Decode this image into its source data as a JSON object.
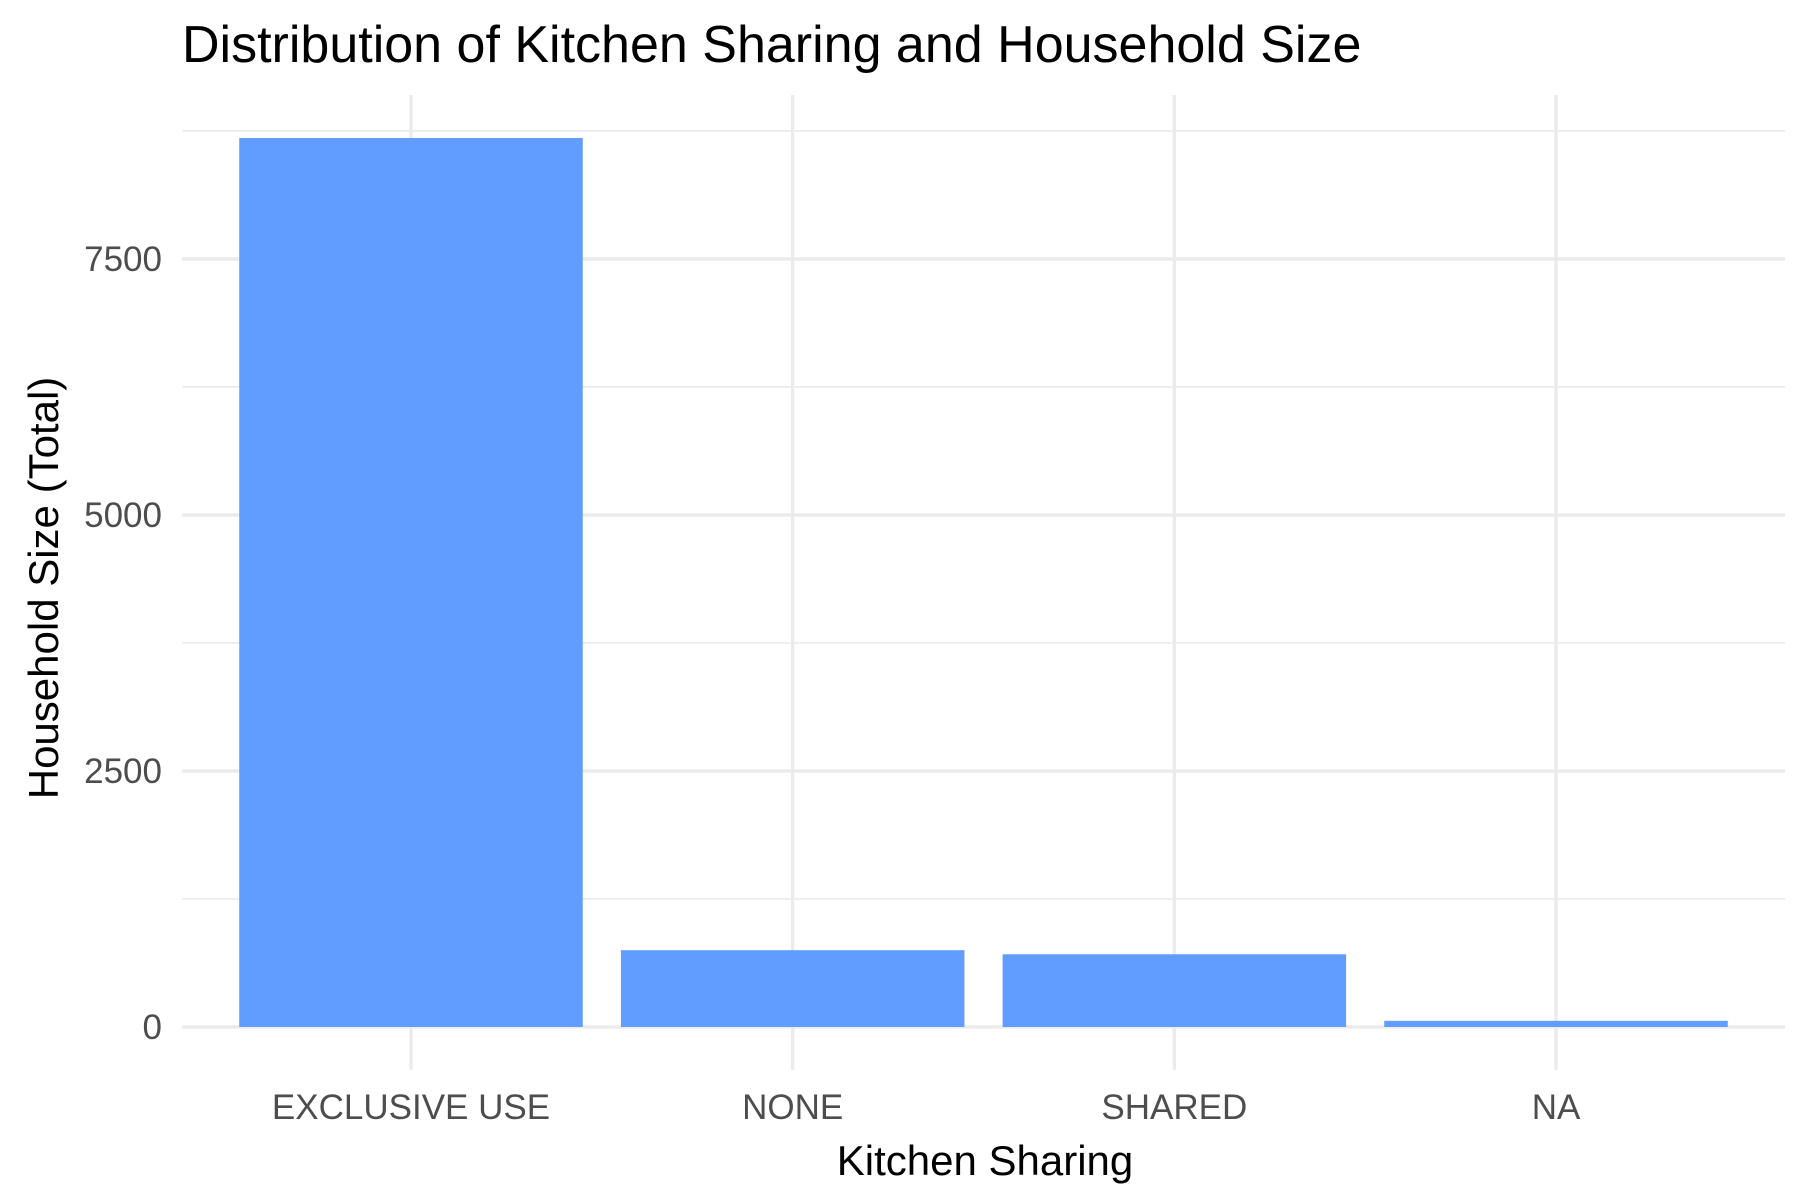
{
  "chart_data": {
    "type": "bar",
    "title": "Distribution of Kitchen Sharing and Household Size",
    "xlabel": "Kitchen Sharing",
    "ylabel": "Household Size (Total)",
    "categories": [
      "EXCLUSIVE USE",
      "NONE",
      "SHARED",
      "NA"
    ],
    "values": [
      8680,
      750,
      710,
      60
    ],
    "ylim": [
      -420,
      9100
    ],
    "yticks": [
      0,
      2500,
      5000,
      7500
    ],
    "ytick_labels": [
      "0",
      "2500",
      "5000",
      "7500"
    ],
    "grid": true,
    "legend": "none",
    "bar_color": "#619CFF"
  }
}
